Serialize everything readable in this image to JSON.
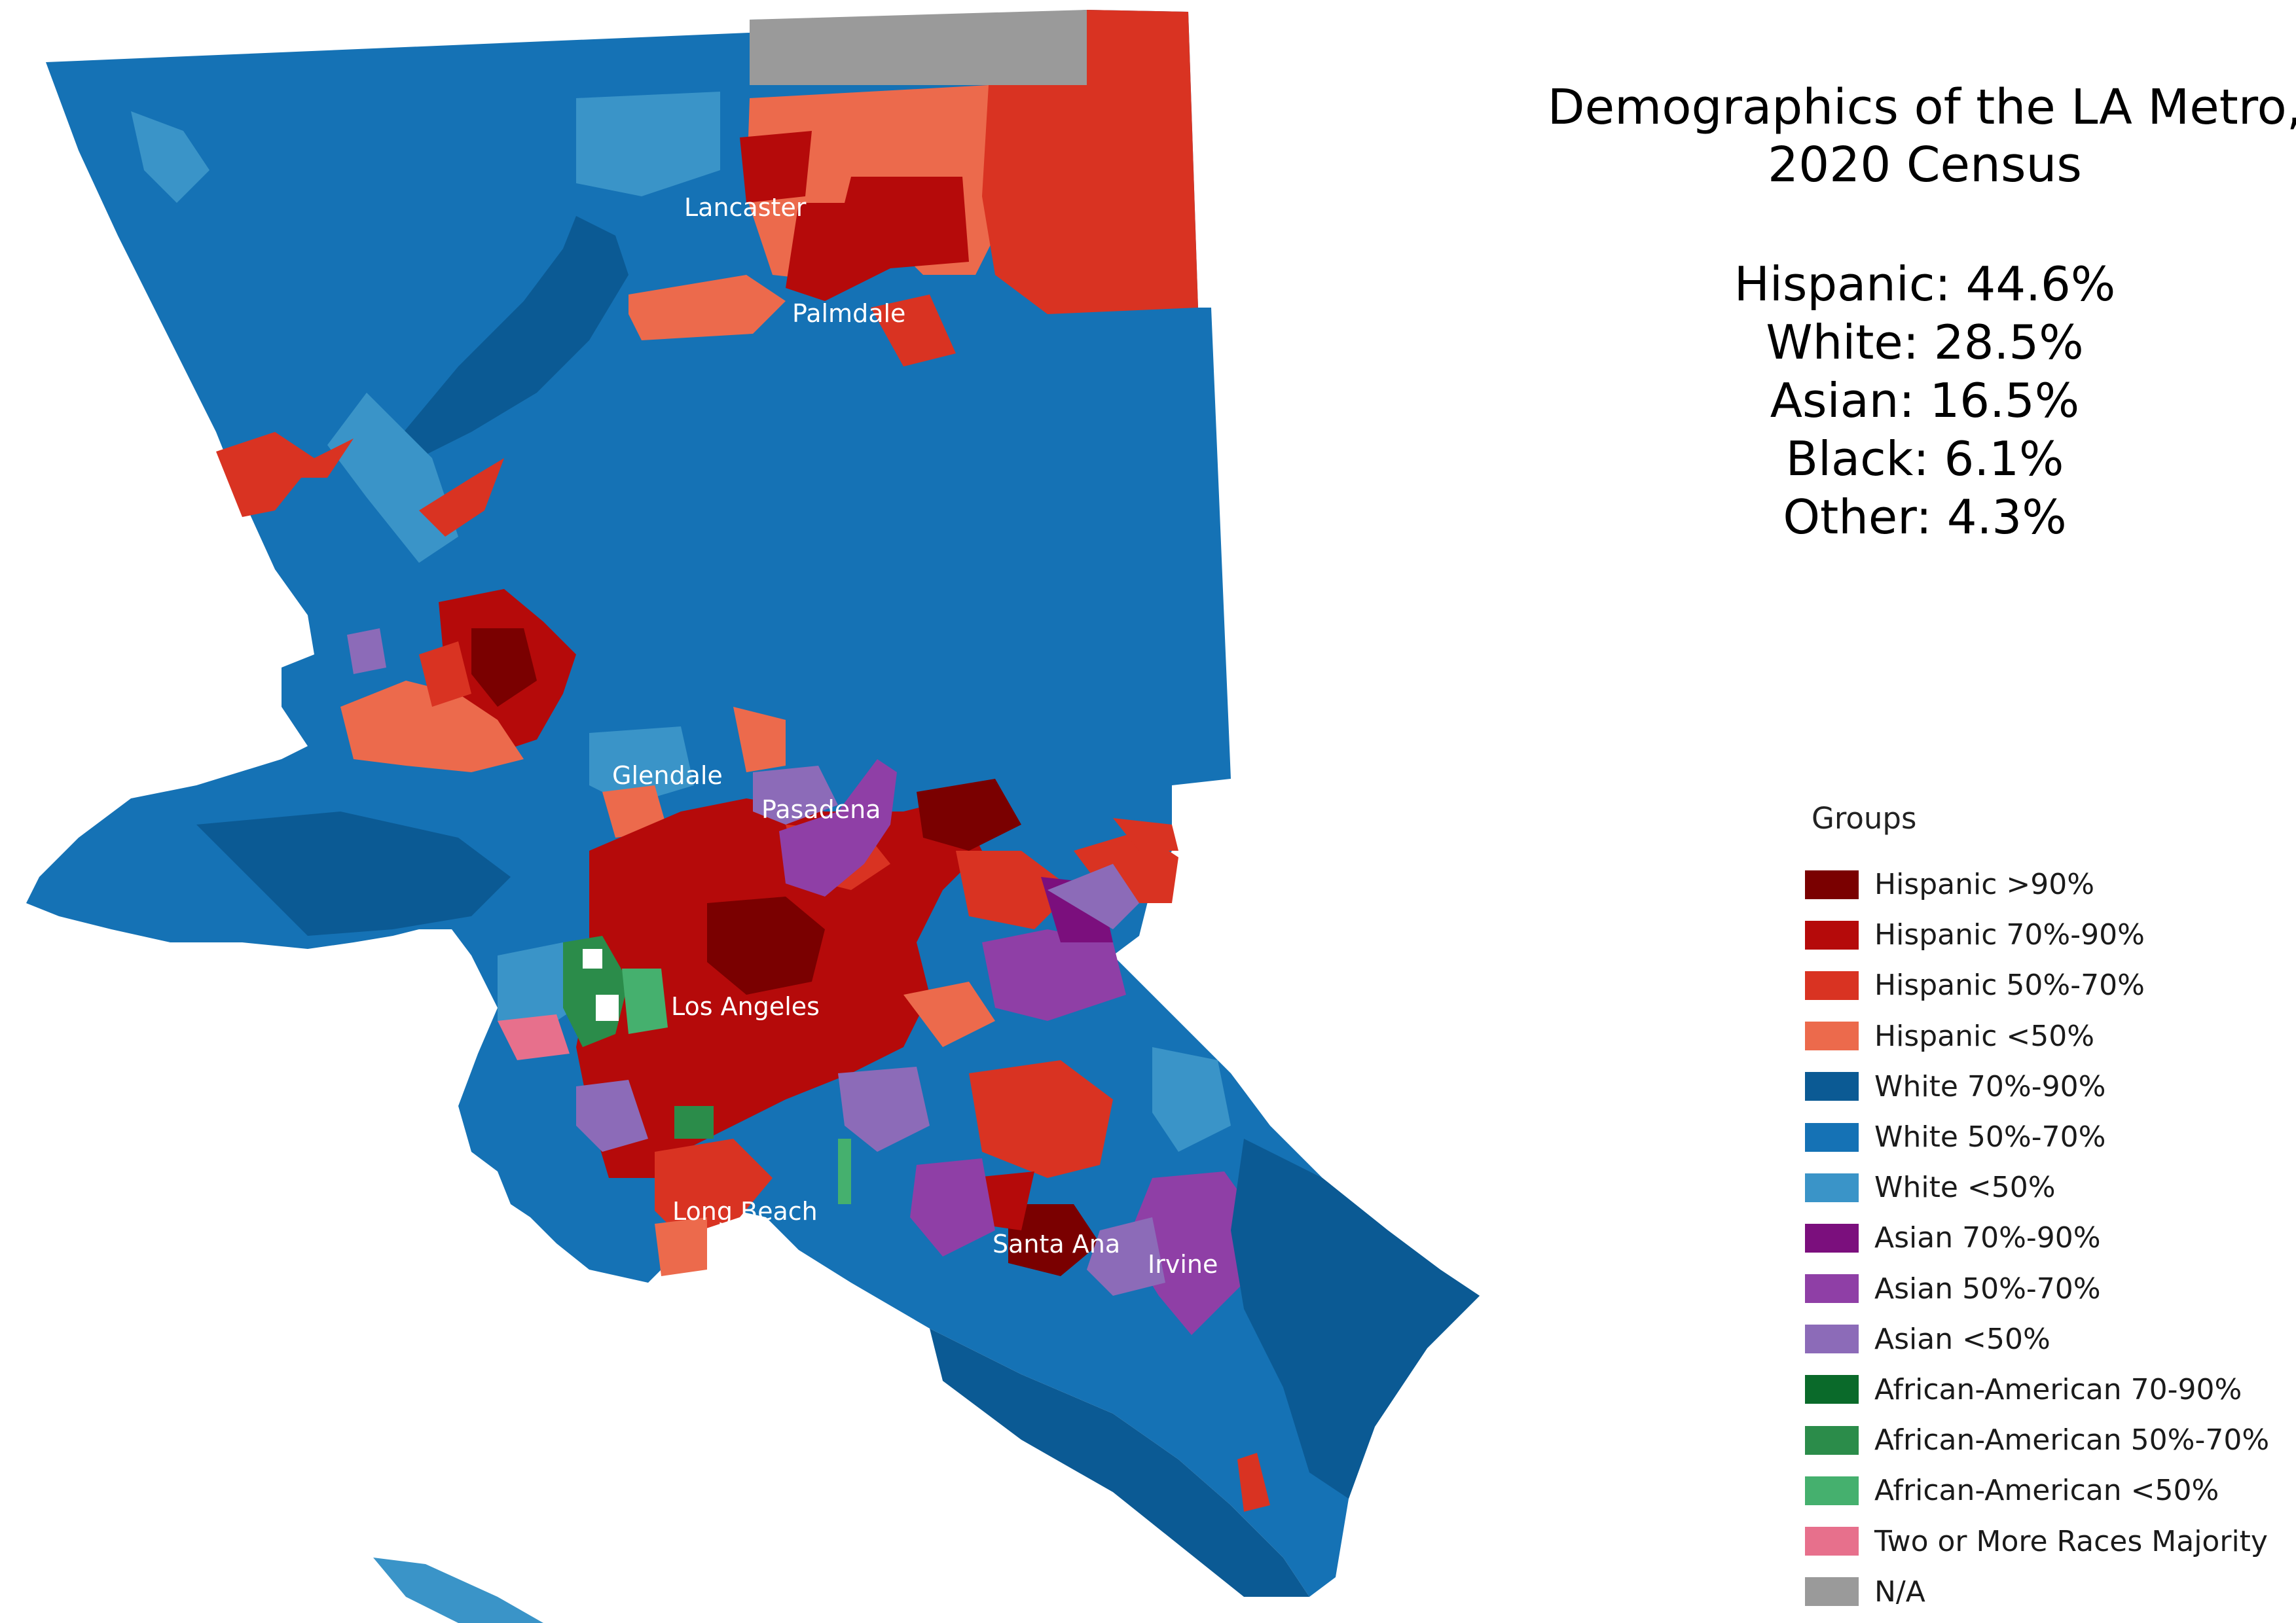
{
  "title_lines": [
    "Demographics of the LA Metro,",
    "2020 Census"
  ],
  "stats": [
    {
      "group": "Hispanic",
      "text": "Hispanic: 44.6%",
      "value_pct": 44.6
    },
    {
      "group": "White",
      "text": "White: 28.5%",
      "value_pct": 28.5
    },
    {
      "group": "Asian",
      "text": "Asian: 16.5%",
      "value_pct": 16.5
    },
    {
      "group": "Black",
      "text": "Black: 6.1%",
      "value_pct": 6.1
    },
    {
      "group": "Other",
      "text": "Other: 4.3%",
      "value_pct": 4.3
    }
  ],
  "legend": {
    "title": "Groups",
    "items": [
      {
        "label": "Hispanic >90%",
        "color": "#7a0000"
      },
      {
        "label": "Hispanic 70%-90%",
        "color": "#b50a0a"
      },
      {
        "label": "Hispanic 50%-70%",
        "color": "#d93322"
      },
      {
        "label": "Hispanic <50%",
        "color": "#ec6a4c"
      },
      {
        "label": "White 70%-90%",
        "color": "#0b5a94"
      },
      {
        "label": "White 50%-70%",
        "color": "#1572b5"
      },
      {
        "label": "White <50%",
        "color": "#3a94c8"
      },
      {
        "label": "Asian 70%-90%",
        "color": "#7b0f7d"
      },
      {
        "label": "Asian 50%-70%",
        "color": "#8f3fa6"
      },
      {
        "label": "Asian <50%",
        "color": "#8c6bb8"
      },
      {
        "label": "African-American 70-90%",
        "color": "#0a6a2a"
      },
      {
        "label": "African-American 50%-70%",
        "color": "#2b8c4a"
      },
      {
        "label": "African-American <50%",
        "color": "#45b06e"
      },
      {
        "label": "Two or More Races Majority",
        "color": "#e7708c"
      },
      {
        "label": "N/A",
        "color": "#9a9a9a"
      }
    ]
  },
  "cities": [
    {
      "name": "Lancaster"
    },
    {
      "name": "Palmdale"
    },
    {
      "name": "Glendale"
    },
    {
      "name": "Pasadena"
    },
    {
      "name": "Los Angeles"
    },
    {
      "name": "Long Beach"
    },
    {
      "name": "Santa Ana"
    },
    {
      "name": "Irvine"
    }
  ]
}
